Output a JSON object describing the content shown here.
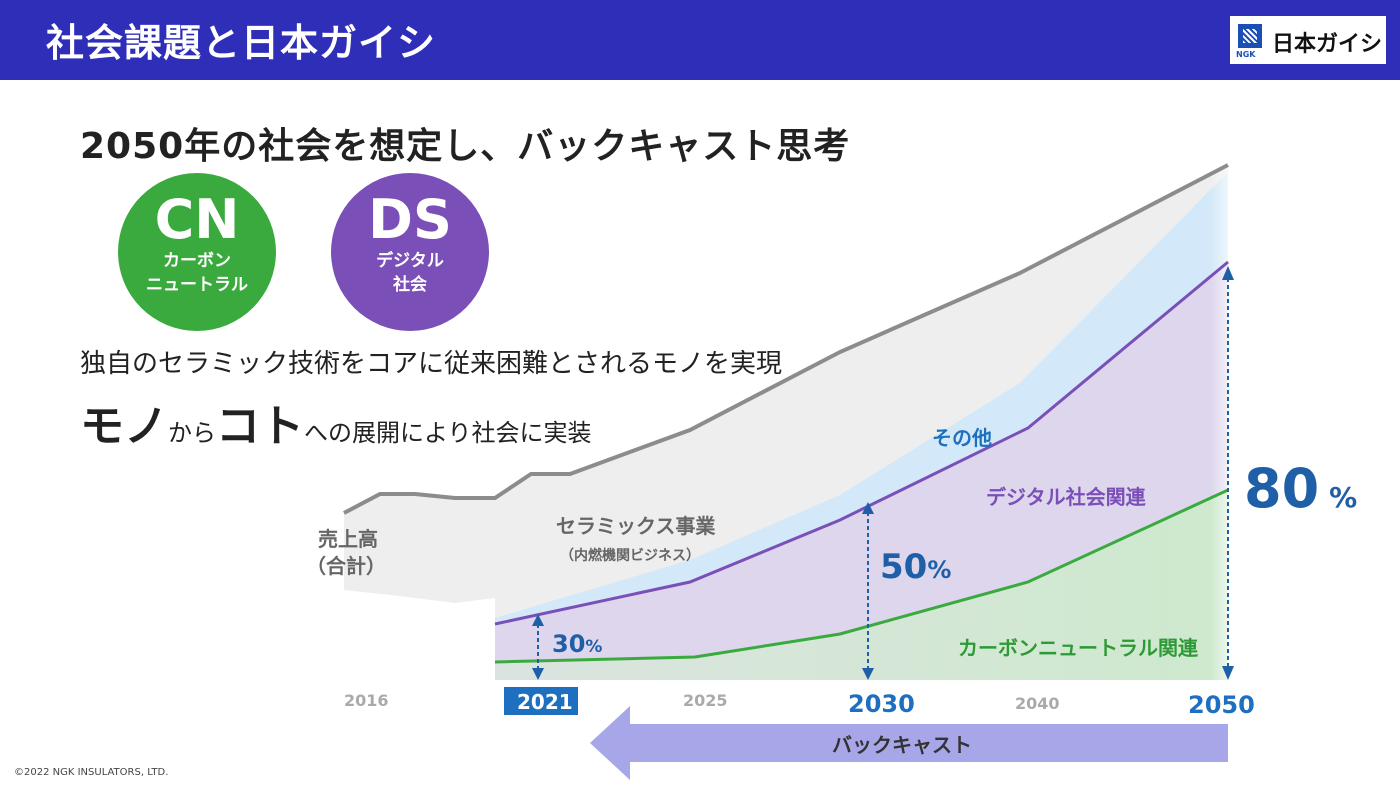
{
  "header": {
    "title": "社会課題と日本ガイシ"
  },
  "logo": {
    "text": "日本ガイシ",
    "sub": "NGK"
  },
  "subtitle": "2050年の社会を想定し、バックキャスト思考",
  "circles": [
    {
      "big": "CN",
      "line1": "カーボン",
      "line2": "ニュートラル",
      "color": "#3aaa3f"
    },
    {
      "big": "DS",
      "line1": "デジタル",
      "line2": "社会",
      "color": "#7b4fb8"
    }
  ],
  "desc1": "独自のセラミック技術をコアに従来困難とされるモノを実現",
  "desc2": {
    "a": "モノ",
    "b": "から",
    "c": "コト",
    "d": "への展開により社会に実装"
  },
  "copyright": "©2022 NGK INSULATORS, LTD.",
  "chart_data": {
    "type": "area",
    "x_ticks": [
      "2016",
      "2021",
      "2025",
      "2030",
      "2040",
      "2050"
    ],
    "highlight_tick": "2021",
    "series": [
      {
        "name": "売上高（合計）",
        "color": "#8c8c8c"
      },
      {
        "name": "セラミックス事業（内燃機関ビジネス）",
        "color": "#eeeeee"
      },
      {
        "name": "その他",
        "color": "#cfe7f7"
      },
      {
        "name": "デジタル社会関連",
        "color": "#7b4fb8"
      },
      {
        "name": "カーボンニュートラル関連",
        "color": "#3aaa3f"
      }
    ],
    "labels": {
      "total_line1": "売上高",
      "total_line2": "（合計）",
      "ceramics_line1": "セラミックス事業",
      "ceramics_line2": "（内燃機関ビジネス）",
      "other": "その他",
      "digital": "デジタル社会関連",
      "carbon": "カーボンニュートラル関連"
    },
    "new_business_share": [
      {
        "year": "2021",
        "value": "30",
        "unit": "%"
      },
      {
        "year": "2030",
        "value": "50",
        "unit": "%"
      },
      {
        "year": "2050",
        "value": "80",
        "unit": "%"
      }
    ],
    "arrow_label": "バックキャスト",
    "colors": {
      "accent": "#1f5fa8",
      "total": "#8c8c8c",
      "digital": "#7b4fb8",
      "carbon": "#3aaa3f",
      "arrow": "#a6a6e8"
    }
  }
}
